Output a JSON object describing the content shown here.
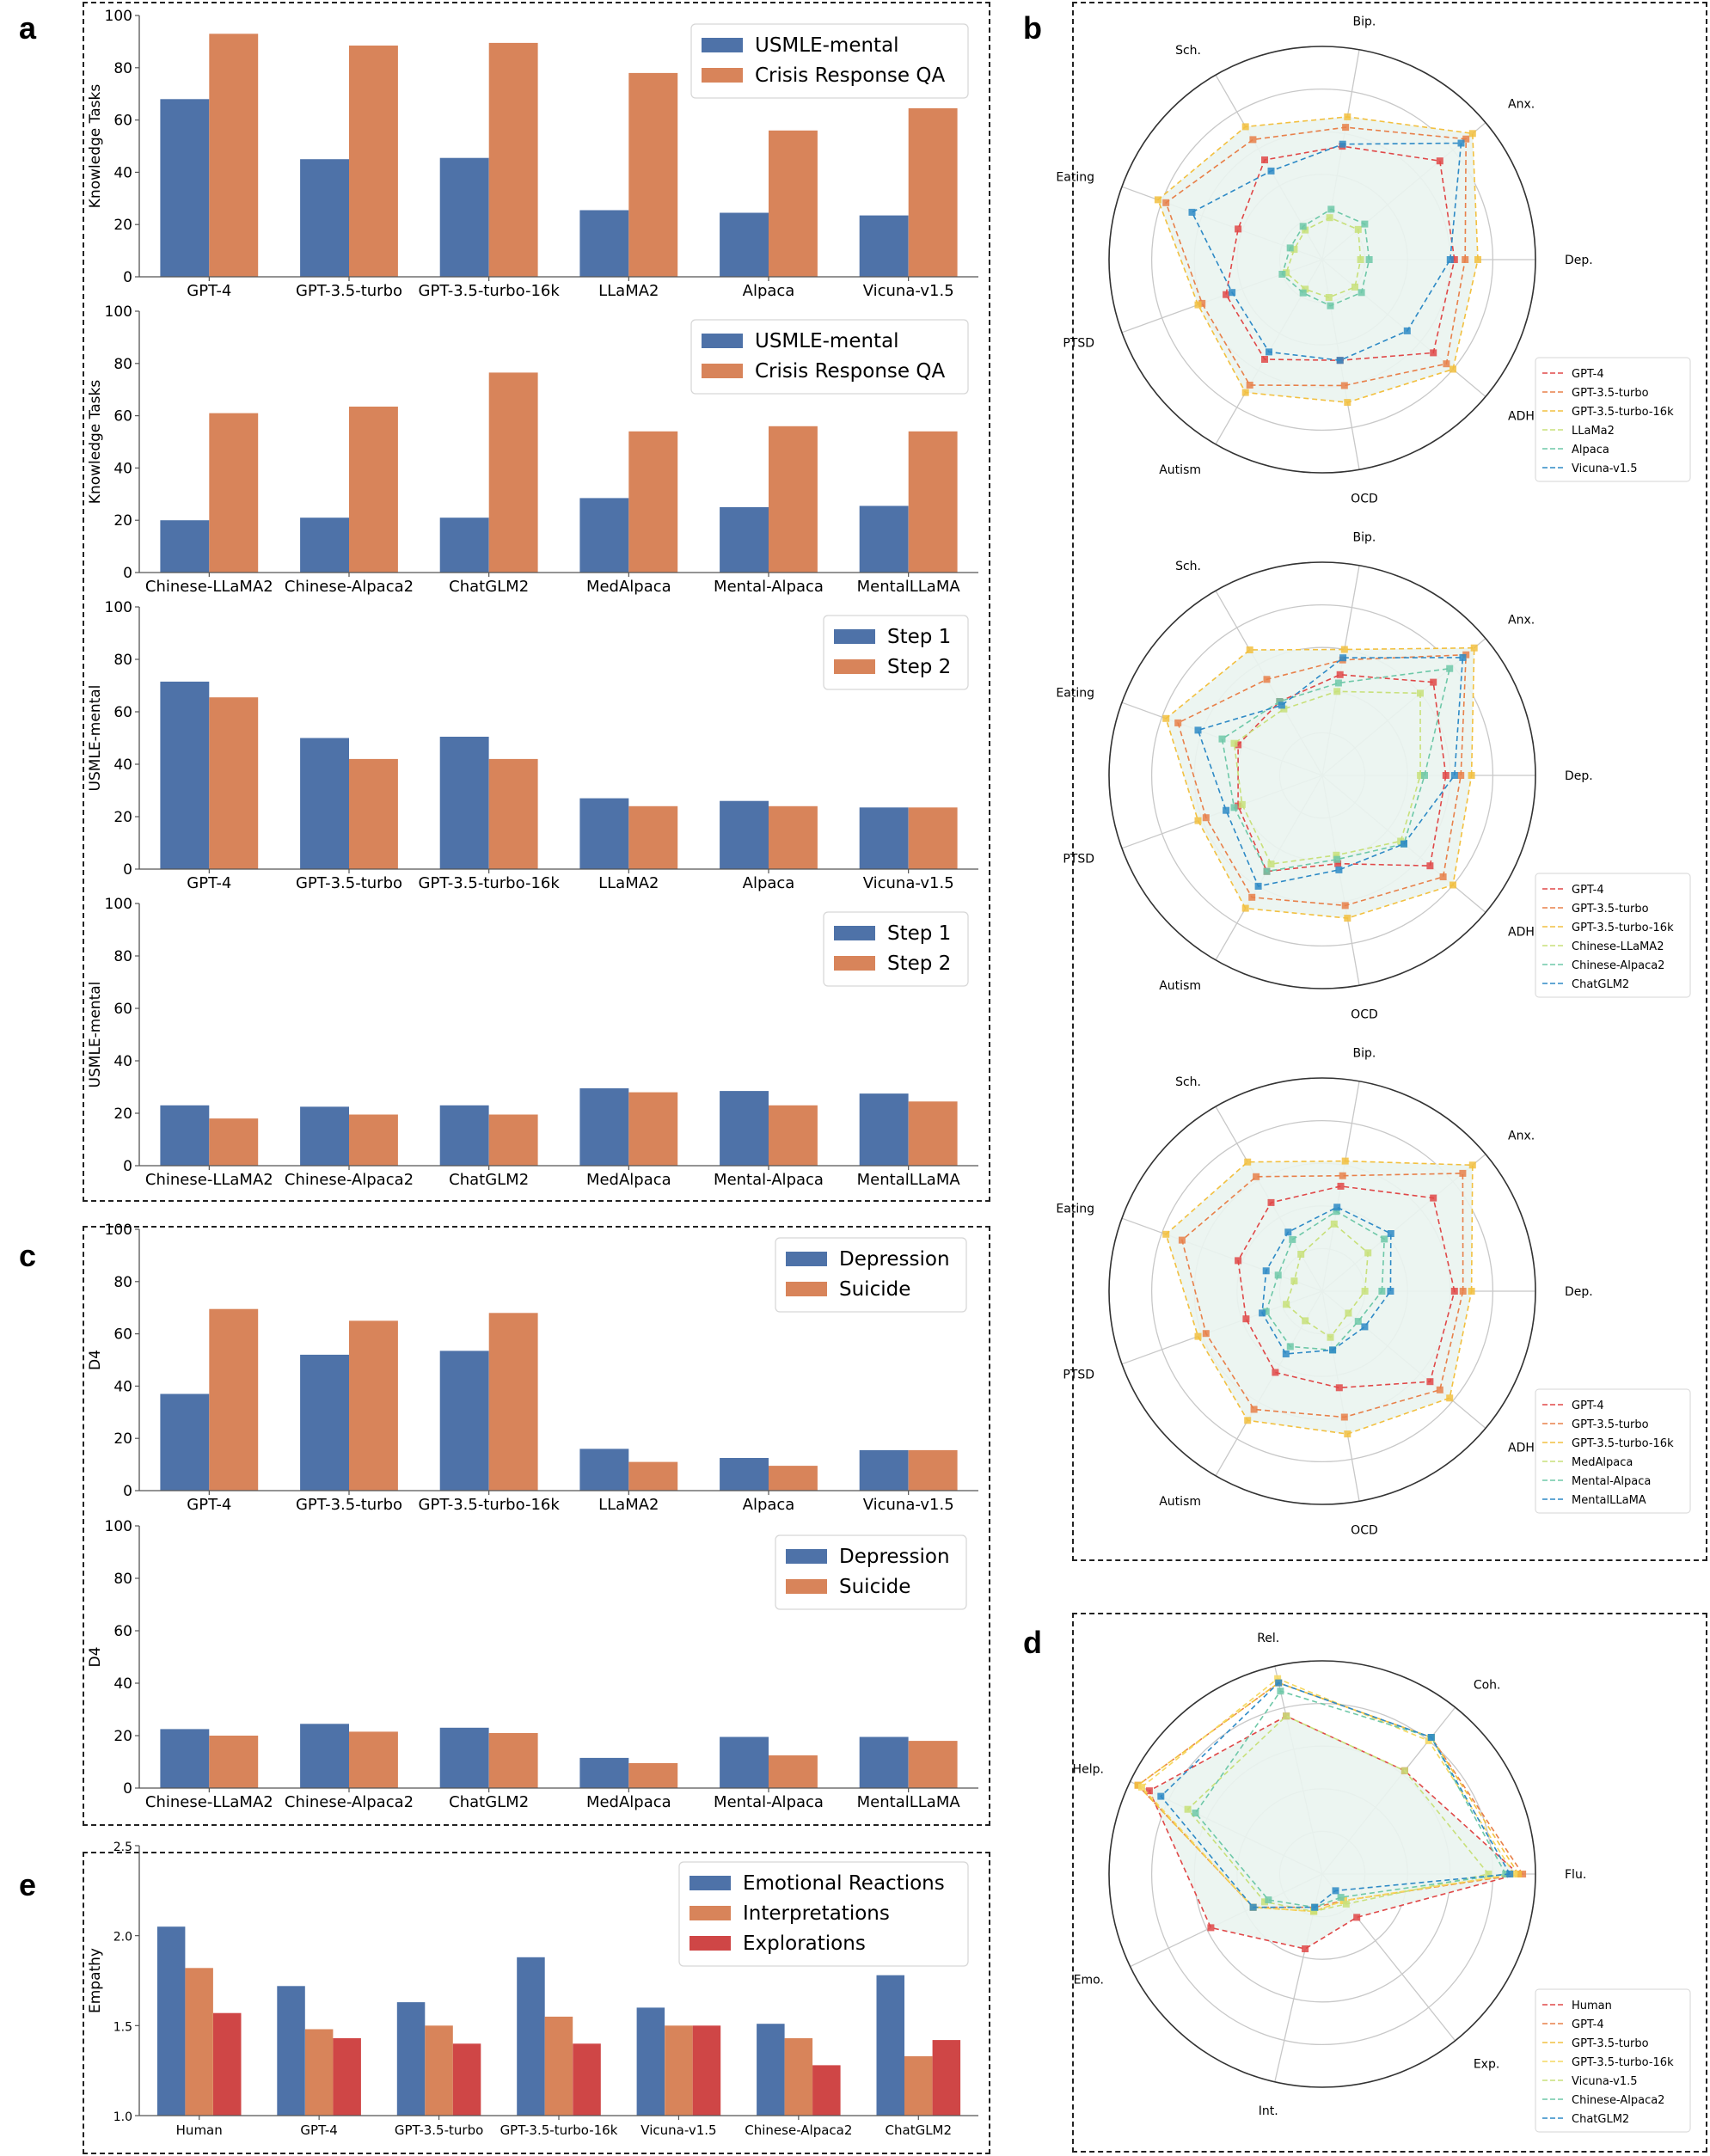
{
  "panel_labels": [
    "a",
    "b",
    "c",
    "d",
    "e"
  ],
  "colors": {
    "blue": "#4e72a8",
    "orange": "#d8845a",
    "red": "#cf4646",
    "axis": "#555555",
    "radar_fill": "#eaf4ef",
    "radar_grid": "#c8c8c8"
  },
  "chart_data": [
    {
      "id": "a1",
      "type": "bar",
      "panel": "a",
      "ylabel": "Knowledge Tasks",
      "ylim": [
        0,
        100
      ],
      "yticks": [
        0,
        20,
        40,
        60,
        80,
        100
      ],
      "categories": [
        "GPT-4",
        "GPT-3.5-turbo",
        "GPT-3.5-turbo-16k",
        "LLaMA2",
        "Alpaca",
        "Vicuna-v1.5"
      ],
      "series": [
        {
          "name": "USMLE-mental",
          "color": "#4e72a8",
          "values": [
            68,
            45,
            45.5,
            25.5,
            24.5,
            23.5
          ]
        },
        {
          "name": "Crisis Response QA",
          "color": "#d8845a",
          "values": [
            93,
            88.5,
            89.5,
            78,
            56,
            64.5
          ]
        }
      ]
    },
    {
      "id": "a2",
      "type": "bar",
      "panel": "a",
      "ylabel": "Knowledge Tasks",
      "ylim": [
        0,
        100
      ],
      "yticks": [
        0,
        20,
        40,
        60,
        80,
        100
      ],
      "categories": [
        "Chinese-LLaMA2",
        "Chinese-Alpaca2",
        "ChatGLM2",
        "MedAlpaca",
        "Mental-Alpaca",
        "MentalLLaMA"
      ],
      "series": [
        {
          "name": "USMLE-mental",
          "color": "#4e72a8",
          "values": [
            20,
            21,
            21,
            28.5,
            25,
            25.5
          ]
        },
        {
          "name": "Crisis Response QA",
          "color": "#d8845a",
          "values": [
            61,
            63.5,
            76.5,
            54,
            56,
            54
          ]
        }
      ]
    },
    {
      "id": "a3",
      "type": "bar",
      "panel": "a",
      "ylabel": "USMLE-mental",
      "ylim": [
        0,
        100
      ],
      "yticks": [
        0,
        20,
        40,
        60,
        80,
        100
      ],
      "categories": [
        "GPT-4",
        "GPT-3.5-turbo",
        "GPT-3.5-turbo-16k",
        "LLaMA2",
        "Alpaca",
        "Vicuna-v1.5"
      ],
      "series": [
        {
          "name": "Step 1",
          "color": "#4e72a8",
          "values": [
            71.5,
            50,
            50.5,
            27,
            26,
            23.5
          ]
        },
        {
          "name": "Step 2",
          "color": "#d8845a",
          "values": [
            65.5,
            42,
            42,
            24,
            24,
            23.5
          ]
        }
      ]
    },
    {
      "id": "a4",
      "type": "bar",
      "panel": "a",
      "ylabel": "USMLE-mental",
      "ylim": [
        0,
        100
      ],
      "yticks": [
        0,
        20,
        40,
        60,
        80,
        100
      ],
      "categories": [
        "Chinese-LLaMA2",
        "Chinese-Alpaca2",
        "ChatGLM2",
        "MedAlpaca",
        "Mental-Alpaca",
        "MentalLLaMA"
      ],
      "series": [
        {
          "name": "Step 1",
          "color": "#4e72a8",
          "values": [
            23,
            22.5,
            23,
            29.5,
            28.5,
            27.5
          ]
        },
        {
          "name": "Step 2",
          "color": "#d8845a",
          "values": [
            18,
            19.5,
            19.5,
            28,
            23,
            24.5
          ]
        }
      ]
    },
    {
      "id": "c1",
      "type": "bar",
      "panel": "c",
      "ylabel": "D4",
      "ylim": [
        0,
        100
      ],
      "yticks": [
        0,
        20,
        40,
        60,
        80,
        100
      ],
      "categories": [
        "GPT-4",
        "GPT-3.5-turbo",
        "GPT-3.5-turbo-16k",
        "LLaMA2",
        "Alpaca",
        "Vicuna-v1.5"
      ],
      "series": [
        {
          "name": "Depression",
          "color": "#4e72a8",
          "values": [
            37,
            52,
            53.5,
            16,
            12.5,
            15.5
          ]
        },
        {
          "name": "Suicide",
          "color": "#d8845a",
          "values": [
            69.5,
            65,
            68,
            11,
            9.5,
            15.5
          ]
        }
      ]
    },
    {
      "id": "c2",
      "type": "bar",
      "panel": "c",
      "ylabel": "D4",
      "ylim": [
        0,
        100
      ],
      "yticks": [
        0,
        20,
        40,
        60,
        80,
        100
      ],
      "categories": [
        "Chinese-LLaMA2",
        "Chinese-Alpaca2",
        "ChatGLM2",
        "MedAlpaca",
        "Mental-Alpaca",
        "MentalLLaMA"
      ],
      "series": [
        {
          "name": "Depression",
          "color": "#4e72a8",
          "values": [
            22.5,
            24.5,
            23,
            11.5,
            19.5,
            19.5
          ]
        },
        {
          "name": "Suicide",
          "color": "#d8845a",
          "values": [
            20,
            21.5,
            21,
            9.5,
            12.5,
            18
          ]
        }
      ]
    },
    {
      "id": "e",
      "type": "bar",
      "panel": "e",
      "ylabel": "Empathy",
      "ylim": [
        1.0,
        2.5
      ],
      "yticks": [
        1.0,
        1.5,
        2.0,
        2.5
      ],
      "categories": [
        "Human",
        "GPT-4",
        "GPT-3.5-turbo",
        "GPT-3.5-turbo-16k",
        "Vicuna-v1.5",
        "Chinese-Alpaca2",
        "ChatGLM2"
      ],
      "series": [
        {
          "name": "Emotional Reactions",
          "color": "#4e72a8",
          "values": [
            2.05,
            1.72,
            1.63,
            1.88,
            1.6,
            1.51,
            1.78
          ]
        },
        {
          "name": "Interpretations",
          "color": "#d8845a",
          "values": [
            1.82,
            1.48,
            1.5,
            1.55,
            1.5,
            1.43,
            1.33
          ]
        },
        {
          "name": "Explorations",
          "color": "#cf4646",
          "values": [
            1.57,
            1.43,
            1.4,
            1.4,
            1.5,
            1.28,
            1.42
          ]
        }
      ]
    },
    {
      "id": "b1",
      "type": "radar",
      "panel": "b",
      "axes": [
        "Dep.",
        "Anx.",
        "Bip.",
        "Sch.",
        "Eating",
        "PTSD",
        "Autism",
        "OCD",
        "ADHD"
      ],
      "rmax": 100,
      "series": [
        {
          "name": "GPT-4",
          "color": "#e04848",
          "values": [
            62,
            72,
            54,
            54,
            42,
            48,
            54,
            48,
            68
          ]
        },
        {
          "name": "GPT-3.5-turbo",
          "color": "#e8804a",
          "values": [
            67,
            88,
            63,
            65,
            78,
            60,
            68,
            60,
            76
          ]
        },
        {
          "name": "GPT-3.5-turbo-16k",
          "color": "#f2c040",
          "values": [
            73,
            92,
            68,
            72,
            82,
            62,
            72,
            68,
            80
          ]
        },
        {
          "name": "LLaMa2",
          "color": "#c8e07a",
          "values": [
            18,
            22,
            20,
            16,
            14,
            18,
            16,
            18,
            20
          ]
        },
        {
          "name": "Alpaca",
          "color": "#6ec8a8",
          "values": [
            22,
            26,
            24,
            18,
            16,
            20,
            18,
            22,
            24
          ]
        },
        {
          "name": "Vicuna-v1.5",
          "color": "#2e8ac6",
          "values": [
            60,
            85,
            55,
            48,
            65,
            45,
            50,
            48,
            52
          ]
        }
      ]
    },
    {
      "id": "b2",
      "type": "radar",
      "panel": "b",
      "axes": [
        "Dep.",
        "Anx.",
        "Bip.",
        "Sch.",
        "Eating",
        "PTSD",
        "Autism",
        "OCD",
        "ADHD"
      ],
      "rmax": 100,
      "series": [
        {
          "name": "GPT-4",
          "color": "#e04848",
          "values": [
            58,
            68,
            48,
            40,
            42,
            42,
            52,
            42,
            66
          ]
        },
        {
          "name": "GPT-3.5-turbo",
          "color": "#e8804a",
          "values": [
            65,
            88,
            55,
            52,
            72,
            58,
            66,
            62,
            74
          ]
        },
        {
          "name": "GPT-3.5-turbo-16k",
          "color": "#f2c040",
          "values": [
            70,
            93,
            60,
            68,
            78,
            62,
            72,
            68,
            80
          ]
        },
        {
          "name": "Chinese-LLaMA2",
          "color": "#c8e07a",
          "values": [
            46,
            60,
            40,
            36,
            44,
            40,
            48,
            38,
            48
          ]
        },
        {
          "name": "Chinese-Alpaca2",
          "color": "#6ec8a8",
          "values": [
            48,
            78,
            44,
            40,
            50,
            44,
            52,
            40,
            50
          ]
        },
        {
          "name": "ChatGLM2",
          "color": "#2e8ac6",
          "values": [
            62,
            86,
            56,
            38,
            62,
            48,
            60,
            45,
            50
          ]
        }
      ]
    },
    {
      "id": "b3",
      "type": "radar",
      "panel": "b",
      "axes": [
        "Dep.",
        "Anx.",
        "Bip.",
        "Sch.",
        "Eating",
        "PTSD",
        "Autism",
        "OCD",
        "ADHD"
      ],
      "rmax": 100,
      "series": [
        {
          "name": "GPT-4",
          "color": "#e04848",
          "values": [
            62,
            68,
            50,
            48,
            42,
            38,
            44,
            46,
            66
          ]
        },
        {
          "name": "GPT-3.5-turbo",
          "color": "#e8804a",
          "values": [
            66,
            86,
            55,
            62,
            70,
            58,
            64,
            60,
            72
          ]
        },
        {
          "name": "GPT-3.5-turbo-16k",
          "color": "#f2c040",
          "values": [
            70,
            92,
            62,
            70,
            78,
            62,
            70,
            68,
            78
          ]
        },
        {
          "name": "MedAlpaca",
          "color": "#c8e07a",
          "values": [
            20,
            28,
            32,
            20,
            14,
            18,
            16,
            22,
            16
          ]
        },
        {
          "name": "Mental-Alpaca",
          "color": "#6ec8a8",
          "values": [
            28,
            38,
            38,
            28,
            22,
            28,
            30,
            28,
            22
          ]
        },
        {
          "name": "MentalLLaMA",
          "color": "#2e8ac6",
          "values": [
            32,
            42,
            40,
            32,
            28,
            30,
            34,
            28,
            26
          ]
        }
      ]
    },
    {
      "id": "d",
      "type": "radar",
      "panel": "d",
      "axes": [
        "Flu.",
        "Coh.",
        "Rel.",
        "Help.",
        "Emo.",
        "Int.",
        "Exp."
      ],
      "rmax": 100,
      "series": [
        {
          "name": "Human",
          "color": "#e04848",
          "values": [
            92,
            62,
            76,
            90,
            58,
            36,
            26
          ]
        },
        {
          "name": "GPT-4",
          "color": "#e8804a",
          "values": [
            94,
            82,
            92,
            96,
            36,
            16,
            16
          ]
        },
        {
          "name": "GPT-3.5-turbo",
          "color": "#f2c040",
          "values": [
            92,
            82,
            92,
            96,
            36,
            18,
            16
          ]
        },
        {
          "name": "GPT-3.5-turbo-16k",
          "color": "#f6d860",
          "values": [
            90,
            80,
            94,
            94,
            36,
            18,
            16
          ]
        },
        {
          "name": "Vicuna-v1.5",
          "color": "#c8e07a",
          "values": [
            78,
            62,
            76,
            70,
            30,
            18,
            18
          ]
        },
        {
          "name": "Chinese-Alpaca2",
          "color": "#6ec8a8",
          "values": [
            86,
            82,
            88,
            66,
            28,
            16,
            14
          ]
        },
        {
          "name": "ChatGLM2",
          "color": "#2e8ac6",
          "values": [
            88,
            82,
            92,
            84,
            36,
            16,
            10
          ]
        }
      ]
    }
  ]
}
